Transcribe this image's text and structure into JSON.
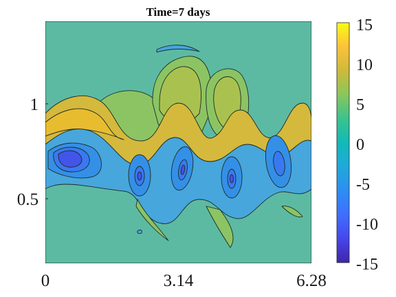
{
  "chart_data": {
    "type": "filled-contour",
    "title": "Time=7 days",
    "xlabel": "",
    "ylabel": "",
    "x_ticks": [
      "0",
      "3.14",
      "6.28"
    ],
    "x_tick_values": [
      0,
      3.14,
      6.28
    ],
    "y_ticks": [
      "0.5",
      "1"
    ],
    "y_tick_values": [
      0.5,
      1
    ],
    "xlim": [
      0,
      6.28
    ],
    "ylim": [
      0.15,
      1.41
    ],
    "colorbar": {
      "range": [
        -15,
        15
      ],
      "ticks": [
        "15",
        "10",
        "5",
        "0",
        "-5",
        "-10",
        "-15"
      ],
      "tick_values": [
        15,
        10,
        5,
        0,
        -5,
        -10,
        -15
      ],
      "colormap": "parula"
    },
    "background_value": 0,
    "features": [
      {
        "kind": "band",
        "sign": "positive",
        "peak": 8,
        "description": "wavy jet band"
      },
      {
        "kind": "vortex",
        "x": 0.45,
        "y": 0.68,
        "value": -10
      },
      {
        "kind": "vortex",
        "x": 2.2,
        "y": 0.61,
        "value": -8
      },
      {
        "kind": "vortex",
        "x": 3.25,
        "y": 0.63,
        "value": -8
      },
      {
        "kind": "vortex",
        "x": 4.4,
        "y": 0.6,
        "value": -8
      },
      {
        "kind": "vortex",
        "x": 5.6,
        "y": 0.66,
        "value": -7
      },
      {
        "kind": "lobe",
        "x": 2.75,
        "y": 1.12,
        "value": 3
      },
      {
        "kind": "lobe",
        "x": 4.55,
        "y": 1.05,
        "value": 3
      }
    ],
    "grid": false,
    "colors": {
      "background_teal": "#5cbaa3",
      "contour_line": "#1e2a26"
    }
  }
}
